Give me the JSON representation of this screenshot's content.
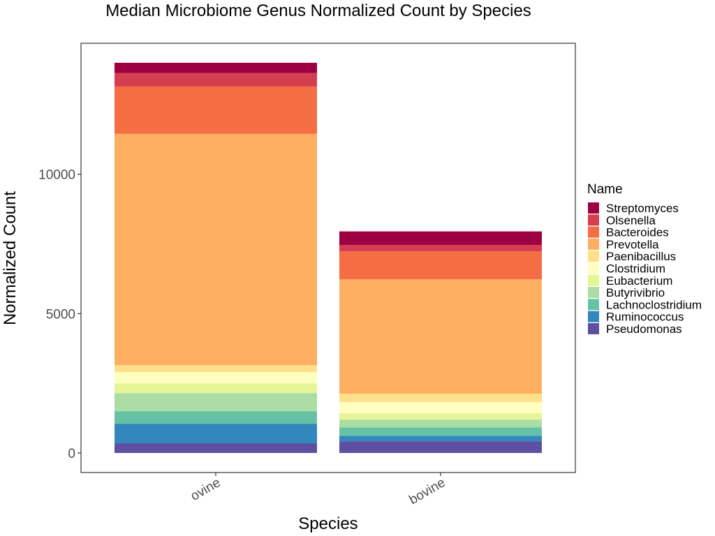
{
  "chart_data": {
    "type": "bar",
    "stacked": true,
    "title": "Median Microbiome Genus Normalized Count by Species",
    "xlabel": "Species",
    "ylabel": "Normalized Count",
    "categories": [
      "ovine",
      "bovine"
    ],
    "ylim": [
      -700,
      14700
    ],
    "yticks": [
      0,
      5000,
      10000
    ],
    "grid": false,
    "legend_title": "Name",
    "legend_position": "right",
    "series": [
      {
        "name": "Pseudomonas",
        "color": "#5E4FA2",
        "values": [
          350,
          420
        ]
      },
      {
        "name": "Ruminococcus",
        "color": "#3288BD",
        "values": [
          700,
          200
        ]
      },
      {
        "name": "Lachnoclostridium",
        "color": "#66C2A5",
        "values": [
          450,
          300
        ]
      },
      {
        "name": "Butyrivibrio",
        "color": "#ABDDA4",
        "values": [
          650,
          280
        ]
      },
      {
        "name": "Eubacterium",
        "color": "#E6F598",
        "values": [
          350,
          230
        ]
      },
      {
        "name": "Clostridium",
        "color": "#FFFFBF",
        "values": [
          400,
          400
        ]
      },
      {
        "name": "Paenibacillus",
        "color": "#FEE08B",
        "values": [
          250,
          300
        ]
      },
      {
        "name": "Prevotella",
        "color": "#FDAE61",
        "values": [
          8300,
          4100
        ]
      },
      {
        "name": "Bacteroides",
        "color": "#F46D43",
        "values": [
          1700,
          1000
        ]
      },
      {
        "name": "Olsenella",
        "color": "#D53E4F",
        "values": [
          480,
          230
        ]
      },
      {
        "name": "Streptomyces",
        "color": "#9E0142",
        "values": [
          370,
          490
        ]
      }
    ]
  }
}
